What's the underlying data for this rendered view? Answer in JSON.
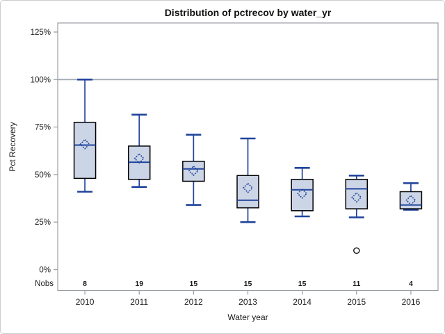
{
  "chart_data": {
    "type": "box",
    "title": "Distribution of pctrecov by water_yr",
    "xlabel": "Water year",
    "ylabel": "Pct Recovery",
    "nobs_label": "Nobs",
    "y_ticks": [
      0,
      25,
      50,
      75,
      100,
      125
    ],
    "y_tick_labels": [
      "0%",
      "25%",
      "50%",
      "75%",
      "100%",
      "125%"
    ],
    "ylim": [
      -11,
      130
    ],
    "reference_line": 100,
    "grid": false,
    "legend": "none",
    "boxes": [
      {
        "category": "2010",
        "nobs": 8,
        "low": 41,
        "q1": 48,
        "median": 65.5,
        "q3": 77.5,
        "high": 100,
        "mean": 66,
        "outliers": []
      },
      {
        "category": "2011",
        "nobs": 19,
        "low": 43.5,
        "q1": 47.5,
        "median": 56.5,
        "q3": 65,
        "high": 81.5,
        "mean": 58.5,
        "outliers": []
      },
      {
        "category": "2012",
        "nobs": 15,
        "low": 34,
        "q1": 46.5,
        "median": 53,
        "q3": 57,
        "high": 71,
        "mean": 52,
        "outliers": []
      },
      {
        "category": "2013",
        "nobs": 15,
        "low": 25,
        "q1": 32.5,
        "median": 36.5,
        "q3": 49.5,
        "high": 69,
        "mean": 43,
        "outliers": []
      },
      {
        "category": "2014",
        "nobs": 15,
        "low": 28,
        "q1": 31,
        "median": 42,
        "q3": 47.5,
        "high": 53.5,
        "mean": 40,
        "outliers": []
      },
      {
        "category": "2015",
        "nobs": 11,
        "low": 27.5,
        "q1": 32,
        "median": 42.5,
        "q3": 47.5,
        "high": 49.5,
        "mean": 38,
        "outliers": [
          10
        ]
      },
      {
        "category": "2016",
        "nobs": 4,
        "low": 31.5,
        "q1": 32,
        "median": 34,
        "q3": 41,
        "high": 45.5,
        "mean": 36.5,
        "outliers": []
      }
    ]
  },
  "colors": {
    "box_fill": "#ccd5e6",
    "box_stroke": "#000000",
    "line_blue": "#21449c",
    "reference_line": "#a3aab4",
    "axis": "#999ea3",
    "text": "#1a1a1a",
    "outlier_stroke": "#000000",
    "outlier_fill": "#ffffff"
  }
}
